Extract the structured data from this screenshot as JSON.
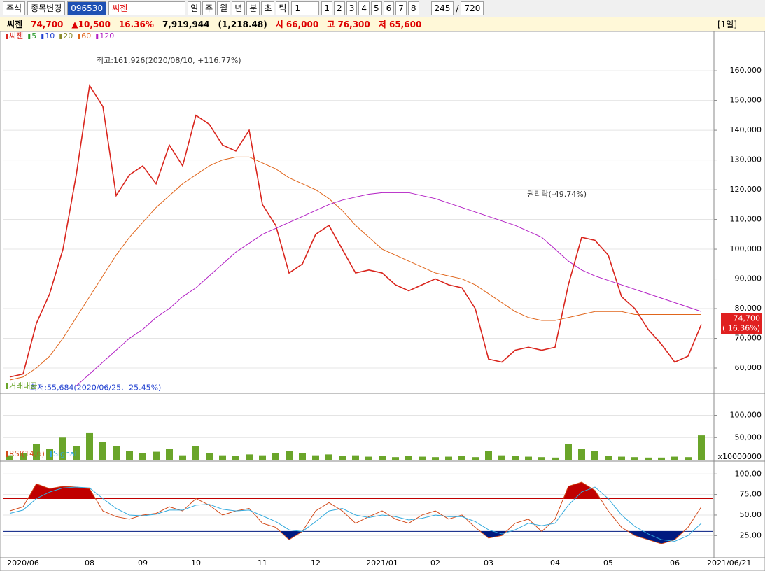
{
  "toolbar": {
    "market": "주식",
    "change": "종목변경",
    "code": "096530",
    "name": "씨젠",
    "periods": [
      "일",
      "주",
      "월",
      "년",
      "분",
      "초",
      "틱"
    ],
    "unit": "1",
    "pages": [
      "1",
      "2",
      "3",
      "4",
      "5",
      "6",
      "7",
      "8"
    ],
    "count": "245",
    "separator": "/",
    "total": "720"
  },
  "info": {
    "name": "씨젠",
    "price": "74,700",
    "change": "▲10,500",
    "rate": "16.36%",
    "volume": "7,919,944",
    "amount": "(1,218.48)",
    "open": "시 66,000",
    "high": "고 76,300",
    "low": "저 65,600",
    "period": "[1일]"
  },
  "chart_data": [
    {
      "type": "line",
      "ylim": [
        52000,
        168500
      ],
      "yticks": [
        {
          "value": 60000,
          "label": "60,000"
        },
        {
          "value": 70000,
          "label": "70,000"
        },
        {
          "value": 80000,
          "label": "80,000"
        },
        {
          "value": 90000,
          "label": "90,000"
        },
        {
          "value": 100000,
          "label": "100,000"
        },
        {
          "value": 110000,
          "label": "110,000"
        },
        {
          "value": 120000,
          "label": "120,000"
        },
        {
          "value": 130000,
          "label": "130,000"
        },
        {
          "value": 140000,
          "label": "140,000"
        },
        {
          "value": 150000,
          "label": "150,000"
        },
        {
          "value": 160000,
          "label": "160,000"
        }
      ],
      "grid": true,
      "series": [
        {
          "name": "씨젠",
          "color": "#d9251d",
          "values": [
            57000,
            58000,
            75000,
            85000,
            100000,
            125000,
            155000,
            148000,
            118000,
            125000,
            128000,
            122000,
            135000,
            128000,
            145000,
            142000,
            135000,
            133000,
            140000,
            115000,
            108000,
            92000,
            95000,
            105000,
            108000,
            100000,
            92000,
            93000,
            92000,
            88000,
            86000,
            88000,
            90000,
            88000,
            87000,
            80000,
            63000,
            62000,
            66000,
            67000,
            66000,
            67000,
            88000,
            104000,
            103000,
            98000,
            84000,
            80000,
            73000,
            68000,
            62000,
            64000,
            74700
          ]
        },
        {
          "name": "60",
          "color": "#e0651b",
          "values": [
            56000,
            57000,
            60000,
            64000,
            70000,
            77000,
            84000,
            91000,
            98000,
            104000,
            109000,
            114000,
            118000,
            122000,
            125000,
            128000,
            130000,
            131000,
            131000,
            129000,
            127000,
            124000,
            122000,
            120000,
            117000,
            113000,
            108000,
            104000,
            100000,
            98000,
            96000,
            94000,
            92000,
            91000,
            90000,
            88000,
            85000,
            82000,
            79000,
            77000,
            76000,
            76000,
            77000,
            78000,
            79000,
            79000,
            79000,
            78000,
            78000,
            78000,
            78000,
            78000,
            78000
          ]
        },
        {
          "name": "120",
          "color": "#b21fc4",
          "values": [
            null,
            null,
            null,
            null,
            null,
            54000,
            58000,
            62000,
            66000,
            70000,
            73000,
            77000,
            80000,
            84000,
            87000,
            91000,
            95000,
            99000,
            102000,
            105000,
            107000,
            109000,
            111000,
            113000,
            115000,
            116500,
            117500,
            118500,
            119000,
            119000,
            119000,
            118000,
            117000,
            115500,
            114000,
            112500,
            111000,
            109500,
            108000,
            106000,
            104000,
            100000,
            96000,
            93000,
            91000,
            89500,
            88000,
            86500,
            85000,
            83500,
            82000,
            80500,
            79000
          ]
        }
      ],
      "legend_only": [
        {
          "name": "5",
          "color": "#2a9a2a"
        },
        {
          "name": "10",
          "color": "#1f3fd0"
        },
        {
          "name": "20",
          "color": "#8a8a2a"
        }
      ],
      "annotations": [
        {
          "text": "최고:161,926(2020/08/10, +116.77%)",
          "x": 6,
          "y": 161926
        },
        {
          "text": "최저:55,684(2020/06/25, -25.45%)",
          "x": 1,
          "y": 55684
        },
        {
          "text": "권리락(-49.74%)",
          "x": 44,
          "y": 117000
        }
      ],
      "last_labels": [
        "74,700",
        "( 16.36%)"
      ]
    },
    {
      "type": "bar",
      "title": "거래대금",
      "color": "#6aa52a",
      "unit": "x10000000",
      "ylim": [
        0,
        145000
      ],
      "yticks": [
        {
          "value": 50000,
          "label": "50,000"
        },
        {
          "value": 100000,
          "label": "100,000"
        }
      ],
      "grid": true,
      "values": [
        10000,
        15000,
        35000,
        25000,
        50000,
        30000,
        60000,
        40000,
        30000,
        20000,
        15000,
        18000,
        25000,
        10000,
        30000,
        15000,
        10000,
        8000,
        12000,
        10000,
        15000,
        20000,
        15000,
        10000,
        12000,
        8000,
        10000,
        7000,
        8000,
        6000,
        8000,
        7000,
        6000,
        7000,
        8000,
        6000,
        20000,
        10000,
        8000,
        7000,
        6000,
        5000,
        35000,
        25000,
        20000,
        8000,
        7000,
        6000,
        5000,
        5000,
        7000,
        6000,
        55000
      ]
    },
    {
      "type": "line",
      "ylim": [
        -2,
        113
      ],
      "yticks": [
        {
          "value": 25,
          "label": "25.00"
        },
        {
          "value": 50,
          "label": "50.00"
        },
        {
          "value": 75,
          "label": "75.00"
        },
        {
          "value": 100,
          "label": "100.00"
        }
      ],
      "grid": true,
      "categories": [
        null,
        "2020/06",
        null,
        null,
        null,
        null,
        "08",
        null,
        null,
        null,
        "09",
        null,
        null,
        null,
        "10",
        null,
        null,
        null,
        null,
        "11",
        null,
        null,
        null,
        "12",
        null,
        null,
        null,
        null,
        "2021/01",
        null,
        null,
        null,
        "02",
        null,
        null,
        null,
        "03",
        null,
        null,
        null,
        null,
        "04",
        null,
        null,
        null,
        "05",
        null,
        null,
        null,
        null,
        "06",
        null,
        "2021/06/21"
      ],
      "series": [
        {
          "name": "RSI(14,6)",
          "color": "#d24a1a",
          "values": [
            55,
            60,
            88,
            82,
            85,
            84,
            82,
            55,
            48,
            45,
            50,
            52,
            60,
            55,
            70,
            62,
            50,
            55,
            58,
            40,
            35,
            20,
            30,
            55,
            65,
            55,
            40,
            48,
            55,
            45,
            40,
            50,
            55,
            45,
            50,
            35,
            22,
            25,
            40,
            45,
            30,
            45,
            85,
            90,
            80,
            55,
            35,
            25,
            20,
            15,
            20,
            35,
            60
          ]
        },
        {
          "name": "Signal",
          "color": "#33aadd",
          "values": [
            52,
            56,
            70,
            78,
            83,
            84,
            83,
            70,
            58,
            50,
            49,
            51,
            56,
            56,
            62,
            63,
            57,
            55,
            56,
            49,
            42,
            32,
            30,
            42,
            55,
            58,
            50,
            47,
            50,
            48,
            44,
            46,
            50,
            48,
            48,
            42,
            32,
            27,
            32,
            40,
            37,
            40,
            62,
            78,
            84,
            70,
            50,
            36,
            27,
            20,
            18,
            25,
            40
          ]
        }
      ],
      "levels": [
        {
          "value": 70,
          "color": "#c00000"
        },
        {
          "value": 30,
          "color": "#001a80"
        }
      ]
    }
  ]
}
